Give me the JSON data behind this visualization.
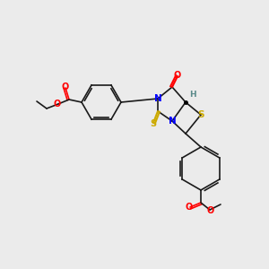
{
  "bg_color": "#ebebeb",
  "fig_width": 3.0,
  "fig_height": 3.0,
  "dpi": 100,
  "bond_color": "#1a1a1a",
  "bond_width": 1.2,
  "atom_colors": {
    "N": "#0000ff",
    "O": "#ff0000",
    "S": "#ccaa00",
    "S_ring": "#ccaa00",
    "C": "#1a1a1a",
    "H": "#5a8a8a"
  }
}
